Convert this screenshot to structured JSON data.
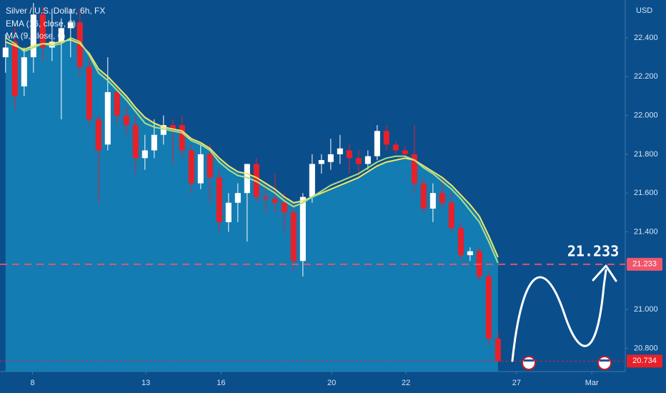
{
  "chart_data": {
    "type": "candlestick",
    "title": "Silver / U.S. Dollar, 6h, FX",
    "currency": "USD",
    "x": [
      0,
      1,
      2,
      3,
      4,
      5,
      6,
      7,
      8,
      9,
      10,
      11,
      12,
      13,
      14,
      15,
      16,
      17,
      18,
      19,
      20,
      21,
      22,
      23,
      24,
      25,
      26,
      27,
      28,
      29,
      30,
      31,
      32,
      33,
      34,
      35,
      36,
      37,
      38,
      39,
      40,
      41,
      42,
      43,
      44,
      45,
      46,
      47,
      48,
      49,
      50,
      51,
      52,
      53
    ],
    "open": [
      22.3,
      22.38,
      22.15,
      22.3,
      22.52,
      22.35,
      22.38,
      22.45,
      22.48,
      22.25,
      21.98,
      21.85,
      22.12,
      22.0,
      21.95,
      21.78,
      21.82,
      21.9,
      21.95,
      21.95,
      21.82,
      21.65,
      21.8,
      21.68,
      21.45,
      21.55,
      21.6,
      21.75,
      21.58,
      21.57,
      21.55,
      21.5,
      21.25,
      21.58,
      21.75,
      21.76,
      21.8,
      21.82,
      21.78,
      21.75,
      21.79,
      21.92,
      21.85,
      21.82,
      21.8,
      21.65,
      21.52,
      21.6,
      21.55,
      21.42,
      21.28,
      21.3,
      21.17,
      20.85
    ],
    "high": [
      22.42,
      22.45,
      22.35,
      22.58,
      22.56,
      22.55,
      22.5,
      22.55,
      22.55,
      22.3,
      22.0,
      22.3,
      22.15,
      22.05,
      22.0,
      21.9,
      21.98,
      22.0,
      21.98,
      22.0,
      21.85,
      21.85,
      21.85,
      21.72,
      21.6,
      21.65,
      21.75,
      21.78,
      21.65,
      21.7,
      21.6,
      21.55,
      21.6,
      21.8,
      21.8,
      21.88,
      21.9,
      21.85,
      21.82,
      21.82,
      21.95,
      21.95,
      21.87,
      21.84,
      21.95,
      21.68,
      21.65,
      21.68,
      21.6,
      21.45,
      21.32,
      21.32,
      21.2,
      20.88
    ],
    "low": [
      22.22,
      22.03,
      22.1,
      22.22,
      22.28,
      22.28,
      21.98,
      22.3,
      22.2,
      21.95,
      21.55,
      21.82,
      21.95,
      21.9,
      21.7,
      21.72,
      21.78,
      21.85,
      21.75,
      21.78,
      21.6,
      21.62,
      21.55,
      21.4,
      21.4,
      21.45,
      21.35,
      21.55,
      21.5,
      21.5,
      21.4,
      21.2,
      21.17,
      21.55,
      21.7,
      21.72,
      21.75,
      21.7,
      21.68,
      21.72,
      21.77,
      21.82,
      21.8,
      21.78,
      21.6,
      21.5,
      21.45,
      21.52,
      21.4,
      21.25,
      21.25,
      21.15,
      20.82,
      20.73
    ],
    "close": [
      22.35,
      22.1,
      22.3,
      22.52,
      22.35,
      22.38,
      22.45,
      22.48,
      22.25,
      21.98,
      21.82,
      22.12,
      22.0,
      21.95,
      21.78,
      21.82,
      21.9,
      21.95,
      21.93,
      21.82,
      21.65,
      21.8,
      21.68,
      21.45,
      21.55,
      21.6,
      21.75,
      21.58,
      21.57,
      21.55,
      21.5,
      21.25,
      21.58,
      21.75,
      21.77,
      21.8,
      21.83,
      21.78,
      21.75,
      21.79,
      21.92,
      21.85,
      21.82,
      21.8,
      21.65,
      21.52,
      21.6,
      21.55,
      21.42,
      21.28,
      21.3,
      21.17,
      20.85,
      20.734
    ],
    "up_color": "#ffffff",
    "down_color": "#e8202a",
    "series": [
      {
        "name": "EMA (16, close, 0)",
        "color": "#f5e663",
        "values": [
          22.38,
          22.36,
          22.34,
          22.36,
          22.37,
          22.37,
          22.38,
          22.39,
          22.37,
          22.32,
          22.24,
          22.2,
          22.15,
          22.1,
          22.04,
          21.99,
          21.96,
          21.94,
          21.93,
          21.92,
          21.88,
          21.86,
          21.83,
          21.78,
          21.74,
          21.71,
          21.7,
          21.68,
          21.65,
          21.62,
          21.58,
          21.55,
          21.56,
          21.58,
          21.6,
          21.62,
          21.64,
          21.66,
          21.68,
          21.71,
          21.74,
          21.76,
          21.77,
          21.78,
          21.77,
          21.74,
          21.71,
          21.68,
          21.64,
          21.59,
          21.54,
          21.48,
          21.38,
          21.27
        ]
      },
      {
        "name": "MA (9, close, 0)",
        "color": "#a7e08a",
        "values": [
          22.4,
          22.37,
          22.33,
          22.35,
          22.37,
          22.36,
          22.37,
          22.4,
          22.38,
          22.31,
          22.22,
          22.18,
          22.13,
          22.08,
          22.02,
          21.96,
          21.94,
          21.93,
          21.92,
          21.91,
          21.87,
          21.85,
          21.82,
          21.76,
          21.72,
          21.69,
          21.68,
          21.66,
          21.63,
          21.6,
          21.56,
          21.53,
          21.55,
          21.58,
          21.61,
          21.64,
          21.66,
          21.68,
          21.7,
          21.73,
          21.76,
          21.78,
          21.79,
          21.79,
          21.77,
          21.73,
          21.7,
          21.66,
          21.62,
          21.57,
          21.51,
          21.45,
          21.35,
          21.24
        ]
      }
    ],
    "xlim": [
      -0.6,
      66.7
    ],
    "xticks": [
      {
        "value": 2.9,
        "label": "8"
      },
      {
        "value": 15.1,
        "label": "13"
      },
      {
        "value": 23.2,
        "label": "16"
      },
      {
        "value": 35.1,
        "label": "20"
      },
      {
        "value": 43.1,
        "label": "22"
      },
      {
        "value": 55,
        "label": "27"
      },
      {
        "value": 63.1,
        "label": "Mar"
      }
    ],
    "ylim": [
      20.68,
      22.595
    ],
    "yticks": [
      {
        "value": 20.8,
        "label": "20.800"
      },
      {
        "value": 21.0,
        "label": "21.000"
      },
      {
        "value": 21.4,
        "label": "21.400"
      },
      {
        "value": 21.6,
        "label": "21.600"
      },
      {
        "value": 21.8,
        "label": "21.800"
      },
      {
        "value": 22.0,
        "label": "22.000"
      },
      {
        "value": 22.2,
        "label": "22.200"
      },
      {
        "value": 22.4,
        "label": "22.400"
      }
    ],
    "price_tags": [
      {
        "value": 21.233,
        "label": "21.233",
        "color": "#f0566b"
      },
      {
        "value": 20.734,
        "label": "20.734",
        "color": "#e8202a"
      }
    ],
    "annotation": {
      "value": 21.233,
      "label": "21.233"
    }
  }
}
